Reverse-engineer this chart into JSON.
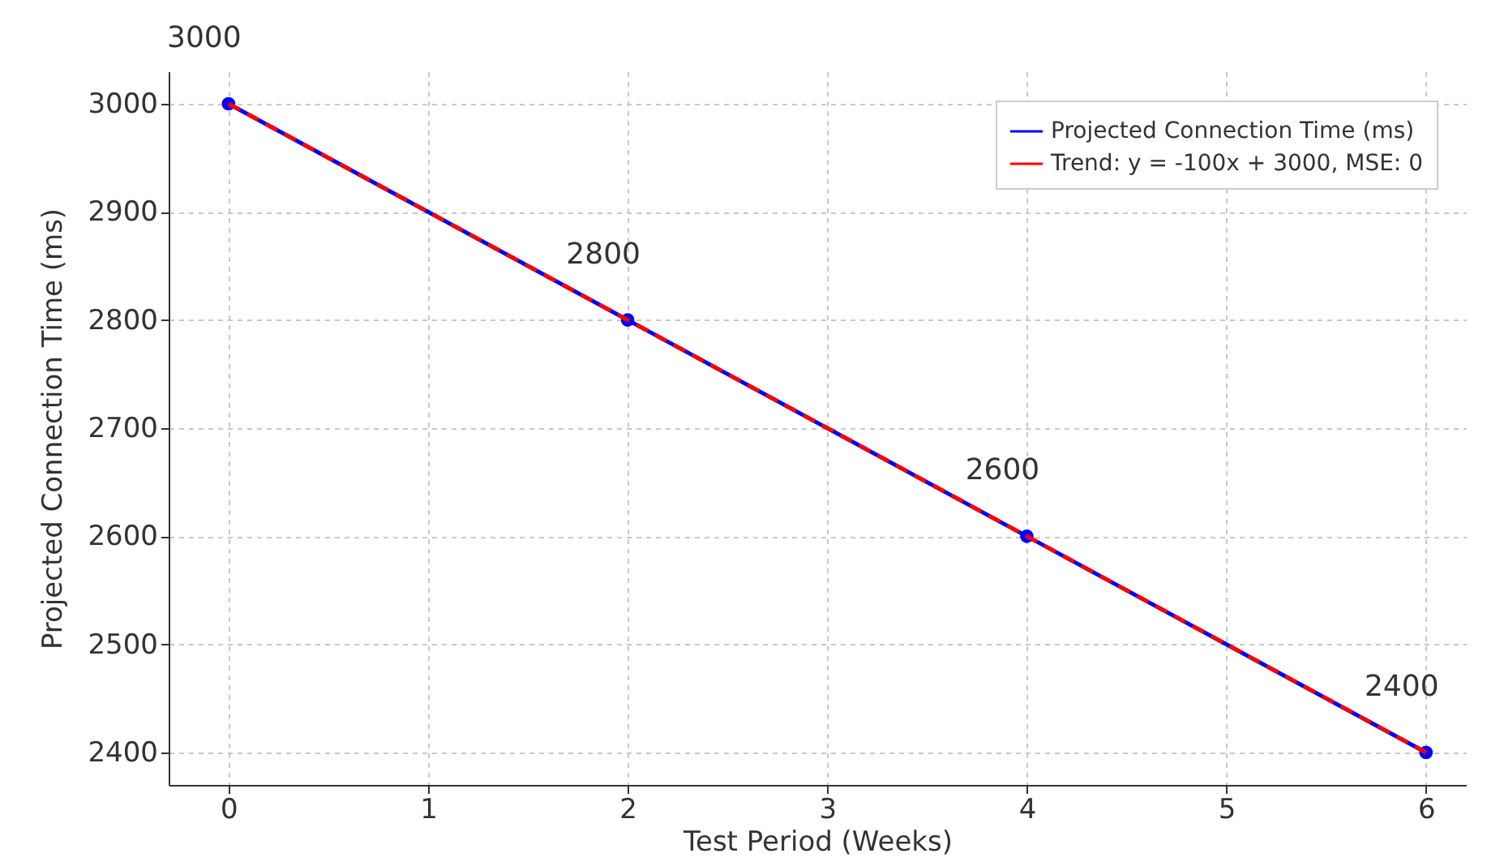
{
  "chart_data": {
    "type": "line",
    "xlabel": "Test Period (Weeks)",
    "ylabel": "Projected Connection Time (ms)",
    "x": [
      0,
      2,
      4,
      6
    ],
    "series": [
      {
        "name": "Projected Connection Time (ms)",
        "color": "#0000ff",
        "values": [
          3000,
          2800,
          2600,
          2400
        ],
        "marker": "circle",
        "line_style": "solid",
        "data_labels": true
      },
      {
        "name": "Trend: y = -100x + 3000, MSE: 0",
        "color": "#ff0000",
        "x": [
          0,
          6
        ],
        "values": [
          3000,
          2400
        ],
        "marker": "none",
        "line_style": "dashed"
      }
    ],
    "xlim": [
      -0.3,
      6.2
    ],
    "ylim": [
      2370,
      3030
    ],
    "xticks": [
      0,
      1,
      2,
      3,
      4,
      5,
      6
    ],
    "yticks": [
      2400,
      2500,
      2600,
      2700,
      2800,
      2900,
      3000
    ],
    "grid": true,
    "legend": "top right"
  }
}
